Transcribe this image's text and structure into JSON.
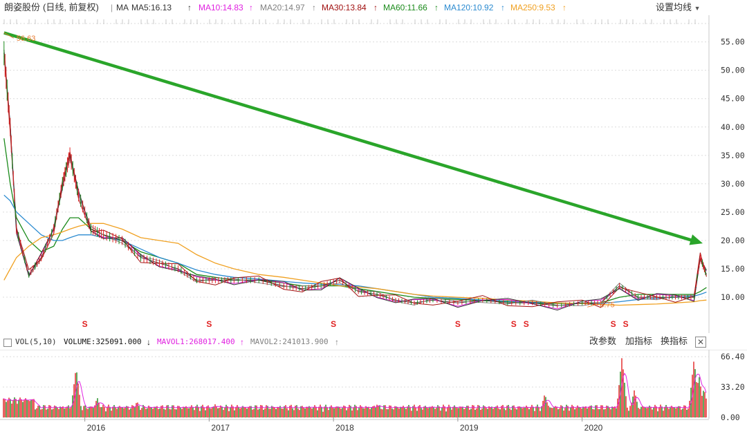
{
  "window": {
    "title": "朗姿股份",
    "subtitle": "(日线, 前复权)",
    "settings_label": "设置均线"
  },
  "ma_legend": [
    {
      "label": "MA",
      "color": "#333333"
    },
    {
      "label": "MA5:16.13",
      "color": "#333333",
      "arrow": "↑"
    },
    {
      "label": "MA10:14.83",
      "color": "#e020e0",
      "arrow": "↑"
    },
    {
      "label": "MA20:14.97",
      "color": "#808080",
      "arrow": "↑"
    },
    {
      "label": "MA30:13.84",
      "color": "#a01010",
      "arrow": "↑"
    },
    {
      "label": "MA60:11.66",
      "color": "#1a8a1a",
      "arrow": "↑"
    },
    {
      "label": "MA120:10.92",
      "color": "#2a8ad0",
      "arrow": "↑"
    },
    {
      "label": "MA250:9.53",
      "color": "#f0a020",
      "arrow": "↑"
    }
  ],
  "vol_legend": [
    {
      "label": "VOL(5,10)",
      "color": "#333333"
    },
    {
      "label": "VOLUME:325091.000",
      "color": "#111111",
      "arrow": "↓"
    },
    {
      "label": "MAVOL1:268017.400",
      "color": "#e020e0",
      "arrow": "↑"
    },
    {
      "label": "MAVOL2:241013.900",
      "color": "#808080",
      "arrow": "↑"
    }
  ],
  "vol_controls": {
    "modify_params": "改参数",
    "add_indicator": "加指标",
    "switch_indicator": "换指标",
    "close": "✕"
  },
  "annotations": {
    "high_label": "56.63",
    "low_label": "8.75",
    "signal_mark": "S"
  },
  "colors": {
    "up": "#e02020",
    "down": "#1a8a1a",
    "trend_arrow": "#2aa52a",
    "ma5": "#333333",
    "ma10": "#e020e0",
    "ma20": "#808080",
    "ma30": "#a01010",
    "ma60": "#1a8a1a",
    "ma120": "#2a8ad0",
    "ma250": "#f0a020"
  },
  "chart_data": [
    {
      "type": "line",
      "name_cn": "日线",
      "x_ticks": [
        "2016",
        "2017",
        "2018",
        "2019",
        "2020"
      ],
      "y_ticks": [
        "55.00",
        "50.00",
        "45.00",
        "40.00",
        "35.00",
        "30.00",
        "25.00",
        "20.00",
        "15.00",
        "10.00"
      ],
      "ylim": [
        5.5,
        58
      ],
      "x": [
        2015.35,
        2015.4,
        2015.45,
        2015.55,
        2015.65,
        2015.75,
        2015.82,
        2015.88,
        2015.95,
        2016.05,
        2016.15,
        2016.3,
        2016.45,
        2016.6,
        2016.75,
        2016.9,
        2017.05,
        2017.2,
        2017.4,
        2017.6,
        2017.75,
        2017.9,
        2018.05,
        2018.2,
        2018.35,
        2018.5,
        2018.65,
        2018.8,
        2019.0,
        2019.2,
        2019.4,
        2019.6,
        2019.8,
        2020.0,
        2020.15,
        2020.3,
        2020.45,
        2020.6,
        2020.75,
        2020.9,
        2020.95,
        2021.0
      ],
      "close": [
        53,
        40,
        22,
        14,
        17,
        22,
        30,
        35,
        28,
        22,
        21,
        20,
        17,
        16,
        15,
        13,
        13,
        13,
        13,
        12,
        11.5,
        12,
        13,
        11,
        10.5,
        9.5,
        9,
        9.5,
        9,
        9.5,
        9,
        9,
        8.5,
        9,
        9,
        12,
        10,
        10,
        10,
        10,
        17,
        14
      ],
      "ma_curves": [
        {
          "key": "ma60",
          "values": [
            38,
            30,
            24,
            20,
            18,
            19,
            22,
            24,
            24,
            22,
            21,
            20,
            18,
            17,
            16,
            14,
            13.5,
            13,
            13,
            12.5,
            12,
            12,
            12,
            11.5,
            11,
            10.5,
            10,
            9.8,
            9.6,
            9.4,
            9.2,
            9.0,
            8.9,
            8.9,
            9.0,
            10,
            10.5,
            10.5,
            10.5,
            10.5,
            11,
            11.7
          ]
        },
        {
          "key": "ma120",
          "values": [
            28,
            27,
            25,
            23,
            21,
            20,
            20,
            20.5,
            21,
            21,
            20.5,
            20,
            18.5,
            17,
            16,
            14.8,
            14,
            13.5,
            13.2,
            12.8,
            12.5,
            12.3,
            12.2,
            12,
            11.5,
            11,
            10.5,
            10,
            9.8,
            9.5,
            9.3,
            9.1,
            9.0,
            8.9,
            8.9,
            9.2,
            9.6,
            9.8,
            10,
            10.2,
            10.5,
            10.9
          ]
        },
        {
          "key": "ma250",
          "values": [
            13,
            15,
            17,
            19,
            20.5,
            21,
            21.5,
            22,
            22.5,
            23,
            23,
            22,
            20.5,
            20,
            19.5,
            17.5,
            16,
            15,
            14,
            13.5,
            13,
            12.5,
            12,
            11.8,
            11.5,
            11,
            10.5,
            10.2,
            10,
            9.8,
            9.5,
            9.3,
            9.0,
            8.9,
            8.7,
            8.6,
            8.7,
            8.8,
            9.0,
            9.2,
            9.4,
            9.5
          ]
        }
      ],
      "high": {
        "x": 2015.35,
        "y": 56.63
      },
      "low": {
        "x": 2020.12,
        "y": 8.75
      },
      "trend_arrow": {
        "from": [
          2015.35,
          56.6
        ],
        "to": [
          2020.97,
          19.5
        ]
      },
      "signals_x": [
        2016.0,
        2017.0,
        2018.0,
        2019.0,
        2019.45,
        2019.55,
        2020.25,
        2020.35
      ]
    },
    {
      "type": "bar",
      "title": "VOL(5,10)",
      "y_ticks": [
        "66.40",
        "33.20",
        "0.00"
      ],
      "ylim": [
        0,
        68
      ]
    }
  ]
}
